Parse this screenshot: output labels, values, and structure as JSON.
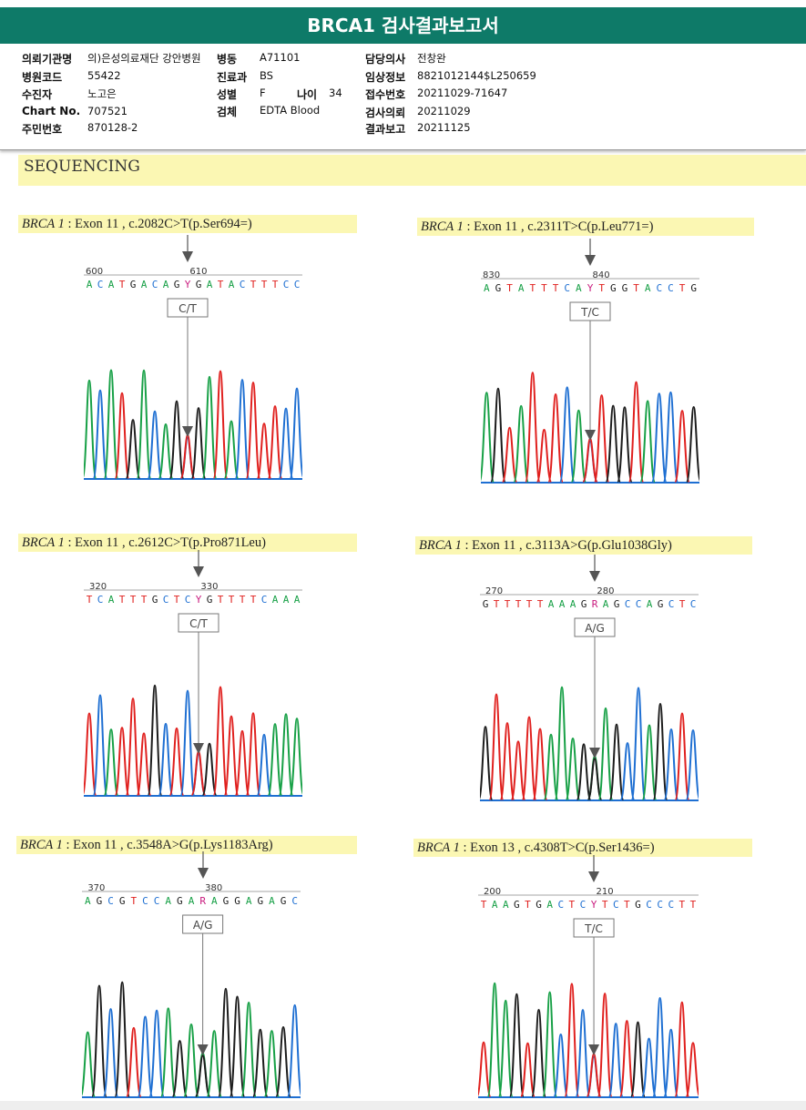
{
  "header": {
    "title": "BRCA1 검사결과보고서"
  },
  "info": {
    "col1": [
      {
        "label": "의뢰기관명",
        "value": "의)은성의료재단 강안병원"
      },
      {
        "label": "병원코드",
        "value": "55422"
      },
      {
        "label": "수진자",
        "value": "노고은"
      },
      {
        "label": "Chart No.",
        "value": "707521"
      },
      {
        "label": "주민번호",
        "value": "870128-2"
      }
    ],
    "col2": [
      {
        "label": "병동",
        "value": "A71101"
      },
      {
        "label": "진료과",
        "value": "BS"
      },
      {
        "label": "성별",
        "value": "F"
      },
      {
        "label": "검체",
        "value": "EDTA Blood"
      }
    ],
    "age": {
      "label": "나이",
      "value": "34"
    },
    "col3": [
      {
        "label": "담당의사",
        "value": "전창완"
      },
      {
        "label": "임상정보",
        "value": "8821012144$L250659"
      },
      {
        "label": "접수번호",
        "value": "20211029-71647"
      },
      {
        "label": "검사의뢰",
        "value": "20211029"
      },
      {
        "label": "결과보고",
        "value": "20211125"
      }
    ]
  },
  "section": {
    "title": "SEQUENCING"
  },
  "panels": [
    {
      "gene": "BRCA 1",
      "detail": ": Exon 11 , c.2082C>T(p.Ser694=)",
      "call": "C/T",
      "pos_left": "600",
      "pos_right": "610",
      "seq": "ACATGACAGYGATACTTTCC",
      "het_index": 9,
      "colors": {
        "A": "#1aa04a",
        "C": "#1f6fd0",
        "G": "#222222",
        "T": "#e02020"
      }
    },
    {
      "gene": "BRCA 1",
      "detail": ": Exon 11 , c.2311T>C(p.Leu771=)",
      "call": "T/C",
      "pos_left": "830",
      "pos_right": "840",
      "seq": "AGTATTTCAYTGGTACCTG",
      "het_index": 9
    },
    {
      "gene": "BRCA 1",
      "detail": ": Exon 11 , c.2612C>T(p.Pro871Leu)",
      "call": "C/T",
      "pos_left": "320",
      "pos_right": "330",
      "seq": "TCATTTGCTCYGTTTTCAAA",
      "het_index": 10
    },
    {
      "gene": "BRCA 1",
      "detail": ": Exon 11 , c.3113A>G(p.Glu1038Gly)",
      "call": "A/G",
      "pos_left": "270",
      "pos_right": "280",
      "seq": "GTTTTTAAAGRAGCCAGCTC",
      "het_index": 10
    },
    {
      "gene": "BRCA 1",
      "detail": ": Exon 11 , c.3548A>G(p.Lys1183Arg)",
      "call": "A/G",
      "pos_left": "370",
      "pos_right": "380",
      "seq": "AGCGTCCAGARAGGAGAGC",
      "het_index": 10
    },
    {
      "gene": "BRCA 1",
      "detail": ": Exon 13 , c.4308T>C(p.Ser1436=)",
      "call": "T/C",
      "pos_left": "200",
      "pos_right": "210",
      "seq": "TAAGTGACTCYTCTGCCCTT",
      "het_index": 10
    }
  ]
}
